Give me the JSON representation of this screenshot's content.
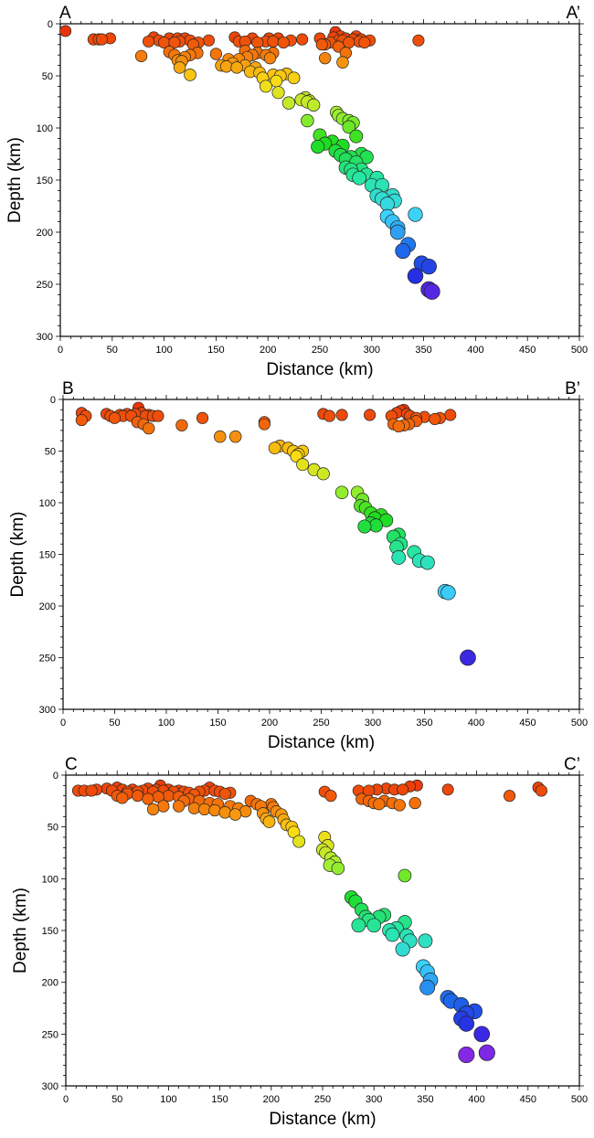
{
  "chart_data": [
    {
      "type": "scatter",
      "label_left": "A",
      "label_right": "A’",
      "xlabel": "Distance (km)",
      "ylabel": "Depth (km)",
      "xlim": [
        0,
        500
      ],
      "ylim": [
        0,
        300
      ],
      "y_inverted": true,
      "xticks": [
        0,
        50,
        100,
        150,
        200,
        250,
        300,
        350,
        400,
        450,
        500
      ],
      "yticks": [
        0,
        50,
        100,
        150,
        200,
        250,
        300
      ],
      "grid": false,
      "color_by": "depth",
      "points": [
        [
          5,
          7
        ],
        [
          32,
          15
        ],
        [
          37,
          15
        ],
        [
          40,
          15
        ],
        [
          48,
          14
        ],
        [
          85,
          17
        ],
        [
          90,
          13
        ],
        [
          95,
          16
        ],
        [
          100,
          18
        ],
        [
          105,
          14
        ],
        [
          110,
          18
        ],
        [
          113,
          14
        ],
        [
          115,
          17
        ],
        [
          120,
          14
        ],
        [
          125,
          16
        ],
        [
          128,
          20
        ],
        [
          133,
          18
        ],
        [
          143,
          16
        ],
        [
          168,
          13
        ],
        [
          172,
          17
        ],
        [
          178,
          17
        ],
        [
          185,
          14
        ],
        [
          190,
          18
        ],
        [
          198,
          17
        ],
        [
          201,
          14
        ],
        [
          205,
          17
        ],
        [
          210,
          14
        ],
        [
          215,
          18
        ],
        [
          222,
          16
        ],
        [
          233,
          15
        ],
        [
          250,
          14
        ],
        [
          255,
          20
        ],
        [
          260,
          18
        ],
        [
          263,
          13
        ],
        [
          265,
          8
        ],
        [
          268,
          16
        ],
        [
          270,
          12
        ],
        [
          272,
          16
        ],
        [
          275,
          14
        ],
        [
          278,
          18
        ],
        [
          282,
          15
        ],
        [
          285,
          12
        ],
        [
          288,
          17
        ],
        [
          290,
          15
        ],
        [
          293,
          18
        ],
        [
          298,
          16
        ],
        [
          345,
          16
        ],
        [
          78,
          31
        ],
        [
          105,
          27
        ],
        [
          110,
          30
        ],
        [
          113,
          35
        ],
        [
          117,
          36
        ],
        [
          120,
          32
        ],
        [
          125,
          30
        ],
        [
          132,
          28
        ],
        [
          150,
          29
        ],
        [
          162,
          34
        ],
        [
          166,
          38
        ],
        [
          172,
          34
        ],
        [
          178,
          26
        ],
        [
          180,
          32
        ],
        [
          185,
          30
        ],
        [
          190,
          28
        ],
        [
          198,
          30
        ],
        [
          202,
          33
        ],
        [
          205,
          28
        ],
        [
          252,
          20
        ],
        [
          255,
          33
        ],
        [
          268,
          22
        ],
        [
          272,
          37
        ],
        [
          275,
          28
        ],
        [
          115,
          42
        ],
        [
          125,
          49
        ],
        [
          155,
          40
        ],
        [
          160,
          41
        ],
        [
          170,
          42
        ],
        [
          178,
          40
        ],
        [
          183,
          46
        ],
        [
          188,
          42
        ],
        [
          192,
          47
        ],
        [
          195,
          52
        ],
        [
          198,
          60
        ],
        [
          205,
          49
        ],
        [
          208,
          55
        ],
        [
          212,
          50
        ],
        [
          218,
          48
        ],
        [
          225,
          52
        ],
        [
          210,
          66
        ],
        [
          220,
          76
        ],
        [
          238,
          75
        ],
        [
          232,
          73
        ],
        [
          236,
          71
        ],
        [
          240,
          74
        ],
        [
          244,
          78
        ],
        [
          238,
          93
        ],
        [
          266,
          85
        ],
        [
          268,
          88
        ],
        [
          272,
          91
        ],
        [
          278,
          93
        ],
        [
          250,
          107
        ],
        [
          255,
          115
        ],
        [
          248,
          118
        ],
        [
          262,
          113
        ],
        [
          278,
          99
        ],
        [
          282,
          95
        ],
        [
          285,
          108
        ],
        [
          272,
          117
        ],
        [
          265,
          122
        ],
        [
          270,
          126
        ],
        [
          275,
          130
        ],
        [
          280,
          128
        ],
        [
          285,
          133
        ],
        [
          290,
          125
        ],
        [
          295,
          128
        ],
        [
          290,
          140
        ],
        [
          280,
          140
        ],
        [
          282,
          145
        ],
        [
          288,
          148
        ],
        [
          275,
          138
        ],
        [
          295,
          145
        ],
        [
          305,
          148
        ],
        [
          300,
          155
        ],
        [
          310,
          155
        ],
        [
          305,
          165
        ],
        [
          310,
          168
        ],
        [
          320,
          165
        ],
        [
          315,
          173
        ],
        [
          322,
          170
        ],
        [
          315,
          185
        ],
        [
          320,
          190
        ],
        [
          325,
          196
        ],
        [
          325,
          200
        ],
        [
          342,
          183
        ],
        [
          335,
          212
        ],
        [
          330,
          218
        ],
        [
          348,
          230
        ],
        [
          355,
          233
        ],
        [
          342,
          242
        ],
        [
          355,
          255
        ],
        [
          358,
          257
        ]
      ]
    },
    {
      "type": "scatter",
      "label_left": "B",
      "label_right": "B’",
      "xlabel": "Distance (km)",
      "ylabel": "Depth (km)",
      "xlim": [
        0,
        500
      ],
      "ylim": [
        0,
        300
      ],
      "y_inverted": true,
      "xticks": [
        0,
        50,
        100,
        150,
        200,
        250,
        300,
        350,
        400,
        450,
        500
      ],
      "yticks": [
        0,
        50,
        100,
        150,
        200,
        250,
        300
      ],
      "grid": false,
      "color_by": "depth",
      "points": [
        [
          18,
          13
        ],
        [
          22,
          16
        ],
        [
          42,
          14
        ],
        [
          46,
          16
        ],
        [
          50,
          18
        ],
        [
          55,
          15
        ],
        [
          58,
          16
        ],
        [
          62,
          14
        ],
        [
          66,
          16
        ],
        [
          70,
          14
        ],
        [
          73,
          8
        ],
        [
          76,
          13
        ],
        [
          80,
          16
        ],
        [
          83,
          15
        ],
        [
          87,
          16
        ],
        [
          92,
          16
        ],
        [
          135,
          18
        ],
        [
          252,
          14
        ],
        [
          258,
          16
        ],
        [
          270,
          15
        ],
        [
          297,
          15
        ],
        [
          318,
          16
        ],
        [
          323,
          13
        ],
        [
          327,
          11
        ],
        [
          330,
          10
        ],
        [
          333,
          14
        ],
        [
          336,
          16
        ],
        [
          342,
          18
        ],
        [
          350,
          17
        ],
        [
          360,
          19
        ],
        [
          365,
          18
        ],
        [
          375,
          15
        ],
        [
          18,
          20
        ],
        [
          72,
          22
        ],
        [
          78,
          24
        ],
        [
          83,
          28
        ],
        [
          115,
          25
        ],
        [
          195,
          24
        ],
        [
          320,
          24
        ],
        [
          325,
          26
        ],
        [
          330,
          25
        ],
        [
          335,
          24
        ],
        [
          342,
          21
        ],
        [
          195,
          22
        ],
        [
          152,
          36
        ],
        [
          167,
          36
        ],
        [
          205,
          47
        ],
        [
          210,
          45
        ],
        [
          218,
          47
        ],
        [
          223,
          50
        ],
        [
          228,
          53
        ],
        [
          232,
          50
        ],
        [
          226,
          55
        ],
        [
          232,
          63
        ],
        [
          243,
          68
        ],
        [
          252,
          72
        ],
        [
          270,
          90
        ],
        [
          285,
          90
        ],
        [
          290,
          97
        ],
        [
          288,
          103
        ],
        [
          293,
          105
        ],
        [
          298,
          110
        ],
        [
          302,
          115
        ],
        [
          308,
          112
        ],
        [
          298,
          120
        ],
        [
          303,
          122
        ],
        [
          313,
          117
        ],
        [
          292,
          123
        ],
        [
          320,
          133
        ],
        [
          325,
          131
        ],
        [
          323,
          143
        ],
        [
          327,
          140
        ],
        [
          325,
          153
        ],
        [
          340,
          148
        ],
        [
          345,
          156
        ],
        [
          353,
          158
        ],
        [
          370,
          186
        ],
        [
          373,
          187
        ],
        [
          392,
          250
        ]
      ]
    },
    {
      "type": "scatter",
      "label_left": "C",
      "label_right": "C’",
      "xlabel": "Distance (km)",
      "ylabel": "Depth (km)",
      "xlim": [
        0,
        500
      ],
      "ylim": [
        0,
        300
      ],
      "y_inverted": true,
      "xticks": [
        0,
        50,
        100,
        150,
        200,
        250,
        300,
        350,
        400,
        450,
        500
      ],
      "yticks": [
        0,
        50,
        100,
        150,
        200,
        250,
        300
      ],
      "grid": false,
      "color_by": "depth",
      "points": [
        [
          12,
          15
        ],
        [
          18,
          15
        ],
        [
          25,
          15
        ],
        [
          30,
          14
        ],
        [
          40,
          13
        ],
        [
          45,
          15
        ],
        [
          50,
          12
        ],
        [
          55,
          14
        ],
        [
          60,
          16
        ],
        [
          65,
          14
        ],
        [
          70,
          16
        ],
        [
          75,
          15
        ],
        [
          80,
          13
        ],
        [
          85,
          16
        ],
        [
          88,
          14
        ],
        [
          92,
          10
        ],
        [
          95,
          15
        ],
        [
          100,
          14
        ],
        [
          105,
          16
        ],
        [
          110,
          15
        ],
        [
          115,
          16
        ],
        [
          120,
          17
        ],
        [
          125,
          19
        ],
        [
          130,
          16
        ],
        [
          135,
          15
        ],
        [
          140,
          12
        ],
        [
          145,
          15
        ],
        [
          150,
          16
        ],
        [
          155,
          18
        ],
        [
          160,
          17
        ],
        [
          252,
          16
        ],
        [
          285,
          15
        ],
        [
          295,
          15
        ],
        [
          303,
          14
        ],
        [
          312,
          13
        ],
        [
          320,
          14
        ],
        [
          328,
          14
        ],
        [
          335,
          11
        ],
        [
          342,
          10
        ],
        [
          372,
          14
        ],
        [
          432,
          20
        ],
        [
          460,
          12
        ],
        [
          463,
          15
        ],
        [
          50,
          20
        ],
        [
          55,
          22
        ],
        [
          60,
          18
        ],
        [
          70,
          20
        ],
        [
          80,
          23
        ],
        [
          90,
          21
        ],
        [
          100,
          20
        ],
        [
          110,
          21
        ],
        [
          115,
          25
        ],
        [
          120,
          23
        ],
        [
          130,
          25
        ],
        [
          140,
          27
        ],
        [
          148,
          28
        ],
        [
          160,
          30
        ],
        [
          168,
          32
        ],
        [
          175,
          35
        ],
        [
          85,
          33
        ],
        [
          95,
          30
        ],
        [
          110,
          30
        ],
        [
          125,
          32
        ],
        [
          135,
          33
        ],
        [
          145,
          34
        ],
        [
          155,
          36
        ],
        [
          165,
          38
        ],
        [
          258,
          20
        ],
        [
          288,
          23
        ],
        [
          295,
          25
        ],
        [
          300,
          27
        ],
        [
          305,
          28
        ],
        [
          310,
          25
        ],
        [
          318,
          27
        ],
        [
          325,
          29
        ],
        [
          340,
          27
        ],
        [
          180,
          25
        ],
        [
          186,
          28
        ],
        [
          190,
          30
        ],
        [
          192,
          37
        ],
        [
          195,
          42
        ],
        [
          198,
          45
        ],
        [
          200,
          28
        ],
        [
          202,
          31
        ],
        [
          205,
          35
        ],
        [
          210,
          38
        ],
        [
          212,
          43
        ],
        [
          215,
          48
        ],
        [
          220,
          50
        ],
        [
          222,
          55
        ],
        [
          227,
          64
        ],
        [
          252,
          60
        ],
        [
          255,
          68
        ],
        [
          250,
          72
        ],
        [
          253,
          75
        ],
        [
          258,
          80
        ],
        [
          262,
          84
        ],
        [
          265,
          90
        ],
        [
          257,
          87
        ],
        [
          330,
          97
        ],
        [
          278,
          118
        ],
        [
          282,
          122
        ],
        [
          288,
          130
        ],
        [
          292,
          137
        ],
        [
          285,
          145
        ],
        [
          295,
          140
        ],
        [
          300,
          145
        ],
        [
          305,
          137
        ],
        [
          310,
          135
        ],
        [
          315,
          150
        ],
        [
          318,
          154
        ],
        [
          322,
          148
        ],
        [
          330,
          142
        ],
        [
          332,
          155
        ],
        [
          335,
          160
        ],
        [
          328,
          168
        ],
        [
          350,
          160
        ],
        [
          348,
          185
        ],
        [
          352,
          190
        ],
        [
          355,
          198
        ],
        [
          352,
          205
        ],
        [
          372,
          215
        ],
        [
          375,
          218
        ],
        [
          385,
          222
        ],
        [
          390,
          230
        ],
        [
          398,
          228
        ],
        [
          385,
          235
        ],
        [
          390,
          240
        ],
        [
          405,
          250
        ],
        [
          390,
          270
        ],
        [
          410,
          268
        ]
      ]
    }
  ]
}
